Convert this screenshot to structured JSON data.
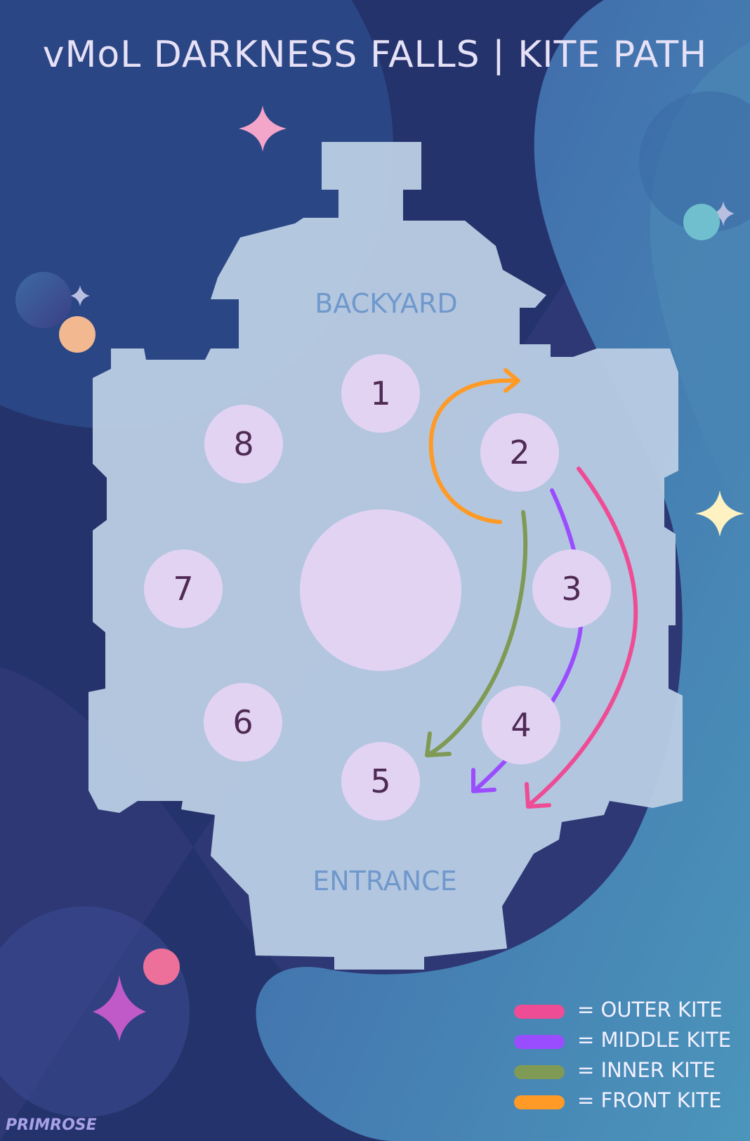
{
  "title": "vMoL DARKNESS FALLS | KITE PATH",
  "map": {
    "backyard_label": "BACKYARD",
    "entrance_label": "ENTRANCE",
    "spots": [
      "1",
      "2",
      "3",
      "4",
      "5",
      "6",
      "7",
      "8"
    ]
  },
  "paths": [
    {
      "name": "outer-kite",
      "color": "#ee4c95"
    },
    {
      "name": "middle-kite",
      "color": "#9a4dff"
    },
    {
      "name": "inner-kite",
      "color": "#7e9a55"
    },
    {
      "name": "front-kite",
      "color": "#ff9a26"
    }
  ],
  "legend": [
    {
      "label": "= OUTER KITE",
      "color": "#ee4c95"
    },
    {
      "label": "= MIDDLE KITE",
      "color": "#9a4dff"
    },
    {
      "label": "= INNER KITE",
      "color": "#7e9a55"
    },
    {
      "label": "= FRONT KITE",
      "color": "#ff9a26"
    }
  ],
  "credit": "PRIMROSE",
  "colors": {
    "background_dark": "#24336b",
    "background_teal": "#4a8db8",
    "room_fill": "#b9cce3",
    "spot_fill": "#e2d3f2",
    "label_blue": "#6f98cc"
  }
}
